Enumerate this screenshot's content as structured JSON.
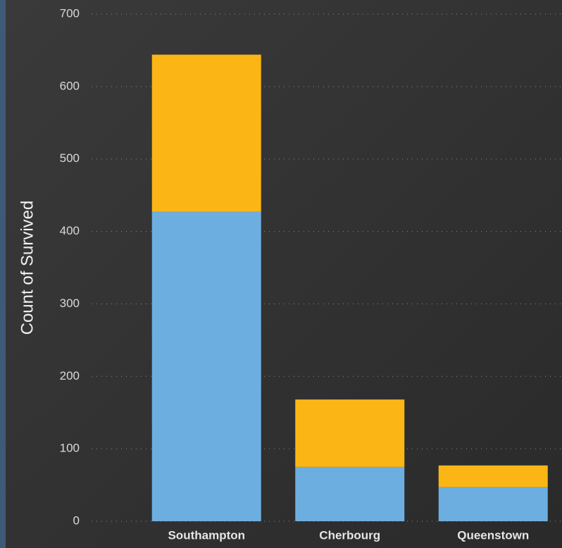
{
  "chart_data": {
    "type": "stacked-bar",
    "y_label": "Count of Survived",
    "categories": [
      "Southampton",
      "Cherbourg",
      "Queenstown"
    ],
    "series": [
      {
        "color": "#6daee0",
        "values": [
          427,
          75,
          47
        ]
      },
      {
        "color": "#fbb615",
        "values": [
          217,
          93,
          30
        ]
      }
    ],
    "ylim": [
      0,
      700
    ],
    "yticks": [
      0,
      100,
      200,
      300,
      400,
      500,
      600,
      700
    ],
    "grid": true
  }
}
